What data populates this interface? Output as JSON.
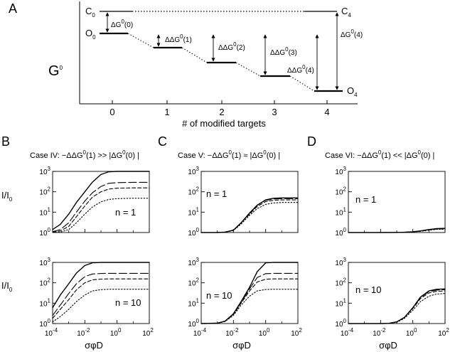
{
  "panel_a": {
    "letter": "A",
    "ylabel": "G",
    "ylabel_sup": "0",
    "xlabel": "# of modified targets",
    "x_ticks": [
      "0",
      "1",
      "2",
      "3",
      "4"
    ],
    "state_labels": {
      "c0": "C",
      "c0_sub": "0",
      "o0": "O",
      "o0_sub": "0",
      "c4": "C",
      "c4_sub": "4",
      "o4": "O",
      "o4_sub": "4"
    },
    "arrows": [
      {
        "pre": "ΔG",
        "sup": "0",
        "post": "(0)"
      },
      {
        "pre": "ΔΔG",
        "sup": "0",
        "post": "(1)"
      },
      {
        "pre": "ΔΔG",
        "sup": "0",
        "post": "(2)"
      },
      {
        "pre": "ΔΔG",
        "sup": "0",
        "post": "(3)"
      },
      {
        "pre": "ΔΔG",
        "sup": "0",
        "post": "(4)"
      },
      {
        "pre": "ΔG",
        "sup": "0",
        "post": "(4)"
      }
    ]
  },
  "shared": {
    "ylabel": "I/I",
    "ylabel_sub": "0",
    "xlabel": "σφD",
    "y_tick_base": "10",
    "y_tick_exps": [
      "0",
      "1",
      "2",
      "3"
    ],
    "x_tick_base": "10",
    "x_tick_exps": [
      "-4",
      "-2",
      "0",
      "2"
    ]
  },
  "cases": [
    {
      "letter": "B",
      "title_pre": "Case IV: −ΔΔG",
      "title_mid": "(1)  >>  |ΔG",
      "title_post": "(0) |",
      "sup": "0",
      "n_labels": [
        "n = 1",
        "n = 10"
      ]
    },
    {
      "letter": "C",
      "title_pre": "Case V: −ΔΔG",
      "title_mid": "(1) ≈  |ΔG",
      "title_post": "(0) |",
      "sup": "0",
      "n_labels": [
        "n = 1",
        "n = 10"
      ]
    },
    {
      "letter": "D",
      "title_pre": "Case VI: −ΔΔG",
      "title_mid": "(1) <<  |ΔG",
      "title_post": "(0) |",
      "sup": "0",
      "n_labels": [
        "n = 1",
        "n = 10"
      ]
    }
  ],
  "chart_data": {
    "type": "line",
    "x_scale": "log",
    "y_scale": "log",
    "xlim": [
      0.0001,
      100
    ],
    "ylim": [
      1,
      1000
    ],
    "grid": false,
    "line_styles": [
      "solid",
      "long-dash",
      "short-dash",
      "dotted"
    ],
    "panels": [
      {
        "case": "Case IV",
        "n": 1,
        "series": [
          {
            "x": [
              0.0001,
              0.0003,
              0.001,
              0.003,
              0.01,
              0.03,
              0.1,
              0.3,
              1,
              10,
              100
            ],
            "y": [
              1.4,
              2.5,
              8,
              30,
              100,
              300,
              700,
              950,
              1000,
              1000,
              1000
            ]
          },
          {
            "x": [
              0.0001,
              0.0003,
              0.001,
              0.003,
              0.01,
              0.03,
              0.1,
              0.3,
              1,
              10,
              100
            ],
            "y": [
              1.1,
              1.4,
              3,
              10,
              35,
              90,
              180,
              260,
              280,
              290,
              290
            ]
          },
          {
            "x": [
              0.0001,
              0.0003,
              0.001,
              0.003,
              0.01,
              0.03,
              0.1,
              0.3,
              1,
              10,
              100
            ],
            "y": [
              1.05,
              1.2,
              2,
              6,
              20,
              55,
              100,
              135,
              150,
              155,
              155
            ]
          },
          {
            "x": [
              0.0001,
              0.0003,
              0.001,
              0.003,
              0.01,
              0.03,
              0.1,
              0.3,
              1,
              10,
              100
            ],
            "y": [
              1,
              1.05,
              1.4,
              3,
              8,
              18,
              32,
              42,
              46,
              48,
              48
            ]
          }
        ]
      },
      {
        "case": "Case IV",
        "n": 10,
        "series": [
          {
            "x": [
              0.0001,
              0.0003,
              0.001,
              0.003,
              0.01,
              0.03,
              0.1,
              0.3,
              1,
              10,
              100
            ],
            "y": [
              6,
              25,
              90,
              300,
              700,
              950,
              1000,
              1000,
              1000,
              1000,
              1000
            ]
          },
          {
            "x": [
              0.0001,
              0.0003,
              0.001,
              0.003,
              0.01,
              0.03,
              0.1,
              0.3,
              1,
              10,
              100
            ],
            "y": [
              2.5,
              8,
              30,
              90,
              200,
              270,
              285,
              290,
              290,
              290,
              290
            ]
          },
          {
            "x": [
              0.0001,
              0.0003,
              0.001,
              0.003,
              0.01,
              0.03,
              0.1,
              0.3,
              1,
              10,
              100
            ],
            "y": [
              1.8,
              5,
              15,
              45,
              100,
              140,
              152,
              155,
              155,
              155,
              155
            ]
          },
          {
            "x": [
              0.0001,
              0.0003,
              0.001,
              0.003,
              0.01,
              0.03,
              0.1,
              0.3,
              1,
              10,
              100
            ],
            "y": [
              1.2,
              2.2,
              5,
              12,
              25,
              40,
              46,
              48,
              48,
              48,
              48
            ]
          }
        ]
      },
      {
        "case": "Case V",
        "n": 1,
        "series": [
          {
            "x": [
              0.0001,
              0.001,
              0.003,
              0.01,
              0.03,
              0.1,
              0.3,
              1,
              3,
              10,
              100
            ],
            "y": [
              1,
              1,
              1.05,
              1.3,
              3,
              9,
              22,
              40,
              48,
              50,
              50
            ]
          },
          {
            "x": [
              0.0001,
              0.001,
              0.003,
              0.01,
              0.03,
              0.1,
              0.3,
              1,
              3,
              10,
              100
            ],
            "y": [
              1,
              1,
              1.05,
              1.3,
              3,
              9,
              22,
              38,
              44,
              46,
              46
            ]
          },
          {
            "x": [
              0.0001,
              0.001,
              0.003,
              0.01,
              0.03,
              0.1,
              0.3,
              1,
              3,
              10,
              100
            ],
            "y": [
              1,
              1,
              1.05,
              1.3,
              3,
              8,
              19,
              33,
              38,
              40,
              40
            ]
          },
          {
            "x": [
              0.0001,
              0.001,
              0.003,
              0.01,
              0.03,
              0.1,
              0.3,
              1,
              3,
              10,
              100
            ],
            "y": [
              1,
              1,
              1.05,
              1.25,
              2.6,
              7,
              15,
              24,
              28,
              30,
              30
            ]
          }
        ]
      },
      {
        "case": "Case V",
        "n": 10,
        "series": [
          {
            "x": [
              0.0001,
              0.001,
              0.003,
              0.01,
              0.03,
              0.1,
              0.3,
              1,
              3,
              10,
              100
            ],
            "y": [
              1,
              1.05,
              1.3,
              3,
              12,
              60,
              350,
              950,
              1000,
              1000,
              1000
            ]
          },
          {
            "x": [
              0.0001,
              0.001,
              0.003,
              0.01,
              0.03,
              0.1,
              0.3,
              1,
              3,
              10,
              100
            ],
            "y": [
              1,
              1.05,
              1.3,
              3,
              11,
              50,
              180,
              280,
              290,
              290,
              290
            ]
          },
          {
            "x": [
              0.0001,
              0.001,
              0.003,
              0.01,
              0.03,
              0.1,
              0.3,
              1,
              3,
              10,
              100
            ],
            "y": [
              1,
              1.05,
              1.3,
              2.8,
              10,
              40,
              110,
              150,
              155,
              155,
              155
            ]
          },
          {
            "x": [
              0.0001,
              0.001,
              0.003,
              0.01,
              0.03,
              0.1,
              0.3,
              1,
              3,
              10,
              100
            ],
            "y": [
              1,
              1.05,
              1.25,
              2.5,
              8,
              22,
              40,
              47,
              48,
              48,
              48
            ]
          }
        ]
      },
      {
        "case": "Case VI",
        "n": 1,
        "series": [
          {
            "x": [
              0.0001,
              0.01,
              0.1,
              0.3,
              1,
              3,
              10,
              30,
              100
            ],
            "y": [
              1,
              1,
              1.01,
              1.03,
              1.08,
              1.2,
              1.4,
              1.55,
              1.6
            ]
          },
          {
            "x": [
              0.0001,
              0.01,
              0.1,
              0.3,
              1,
              3,
              10,
              30,
              100
            ],
            "y": [
              1,
              1,
              1.01,
              1.03,
              1.08,
              1.2,
              1.38,
              1.52,
              1.57
            ]
          },
          {
            "x": [
              0.0001,
              0.01,
              0.1,
              0.3,
              1,
              3,
              10,
              30,
              100
            ],
            "y": [
              1,
              1,
              1.01,
              1.03,
              1.08,
              1.18,
              1.35,
              1.48,
              1.52
            ]
          },
          {
            "x": [
              0.0001,
              0.01,
              0.1,
              0.3,
              1,
              3,
              10,
              30,
              100
            ],
            "y": [
              1,
              1,
              1.01,
              1.03,
              1.07,
              1.15,
              1.3,
              1.42,
              1.45
            ]
          }
        ]
      },
      {
        "case": "Case VI",
        "n": 10,
        "series": [
          {
            "x": [
              0.0001,
              0.01,
              0.03,
              0.1,
              0.3,
              1,
              3,
              10,
              30,
              100
            ],
            "y": [
              1,
              1,
              1.02,
              1.2,
              2,
              6,
              20,
              40,
              48,
              50
            ]
          },
          {
            "x": [
              0.0001,
              0.01,
              0.03,
              0.1,
              0.3,
              1,
              3,
              10,
              30,
              100
            ],
            "y": [
              1,
              1,
              1.02,
              1.2,
              2,
              6,
              19,
              37,
              44,
              46
            ]
          },
          {
            "x": [
              0.0001,
              0.01,
              0.03,
              0.1,
              0.3,
              1,
              3,
              10,
              30,
              100
            ],
            "y": [
              1,
              1,
              1.02,
              1.2,
              2,
              5.5,
              17,
              32,
              38,
              40
            ]
          },
          {
            "x": [
              0.0001,
              0.01,
              0.03,
              0.1,
              0.3,
              1,
              3,
              10,
              30,
              100
            ],
            "y": [
              1,
              1,
              1.02,
              1.15,
              1.8,
              4.5,
              12,
              22,
              28,
              30
            ]
          }
        ]
      }
    ]
  }
}
